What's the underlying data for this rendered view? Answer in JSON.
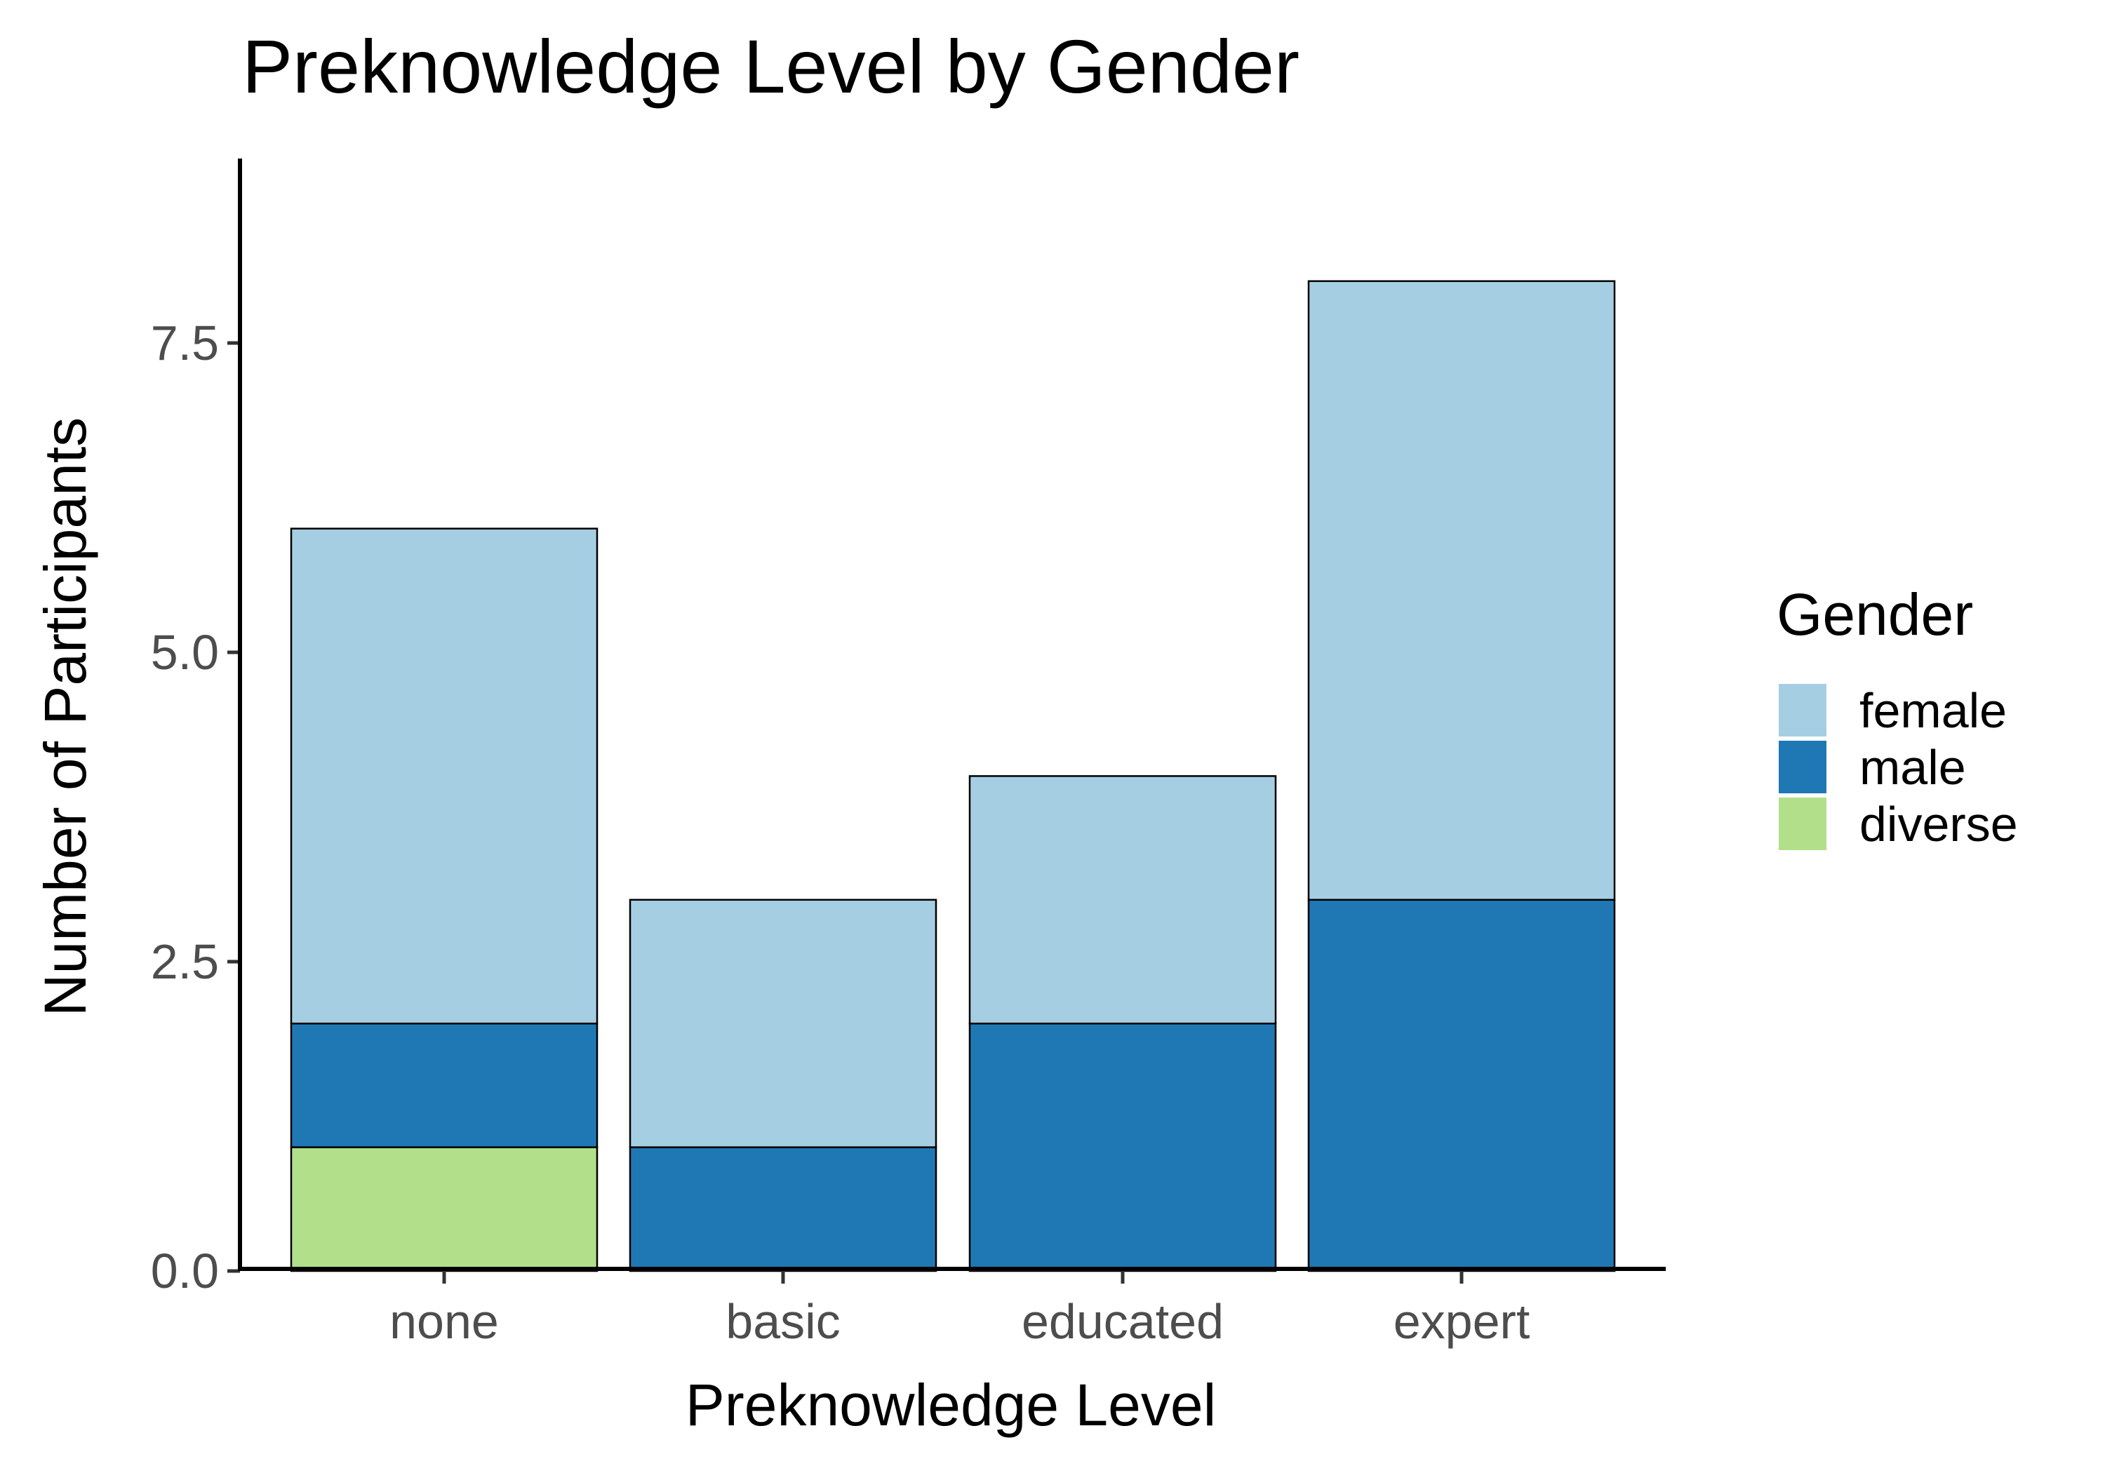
{
  "chart_data": {
    "type": "bar",
    "stacked": true,
    "title": "Preknowledge Level by Gender",
    "xlabel": "Preknowledge Level",
    "ylabel": "Number of Participants",
    "categories": [
      "none",
      "basic",
      "educated",
      "expert"
    ],
    "series": [
      {
        "name": "female",
        "color": "#a6cee3",
        "values": [
          4,
          2,
          2,
          5
        ]
      },
      {
        "name": "male",
        "color": "#1f78b4",
        "values": [
          1,
          1,
          2,
          3
        ]
      },
      {
        "name": "diverse",
        "color": "#b2df8a",
        "values": [
          1,
          0,
          0,
          0
        ]
      }
    ],
    "stack_order_bottom_to_top": [
      "diverse",
      "male",
      "female"
    ],
    "ylim": [
      0,
      9
    ],
    "yticks": [
      0,
      2.5,
      5,
      7.5
    ],
    "ytick_labels": [
      "0.0",
      "2.5",
      "5.0",
      "7.5"
    ],
    "grid": false,
    "legend": {
      "title": "Gender",
      "placement": "right"
    }
  }
}
